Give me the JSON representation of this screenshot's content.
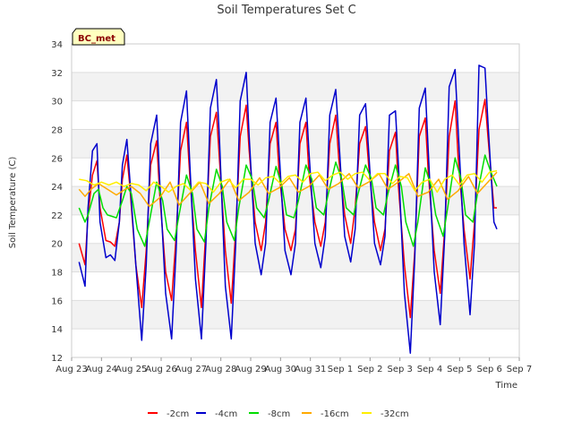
{
  "chart_data": {
    "type": "line",
    "title": "Soil Temperatures Set C",
    "xlabel": "Time",
    "ylabel": "Soil Temperature (C)",
    "badge": "BC_met",
    "ylim": [
      12,
      34
    ],
    "yticks": [
      12,
      14,
      16,
      18,
      20,
      22,
      24,
      26,
      28,
      30,
      32,
      34
    ],
    "xlim": [
      0,
      15
    ],
    "xticks": [
      {
        "pos": 0,
        "label": "Aug 23"
      },
      {
        "pos": 1,
        "label": "Aug 24"
      },
      {
        "pos": 2,
        "label": "Aug 25"
      },
      {
        "pos": 3,
        "label": "Aug 26"
      },
      {
        "pos": 4,
        "label": "Aug 27"
      },
      {
        "pos": 5,
        "label": "Aug 28"
      },
      {
        "pos": 6,
        "label": "Aug 29"
      },
      {
        "pos": 7,
        "label": "Aug 30"
      },
      {
        "pos": 8,
        "label": "Aug 31"
      },
      {
        "pos": 9,
        "label": "Sep 1"
      },
      {
        "pos": 10,
        "label": "Sep 2"
      },
      {
        "pos": 11,
        "label": "Sep 3"
      },
      {
        "pos": 12,
        "label": "Sep 4"
      },
      {
        "pos": 13,
        "label": "Sep 5"
      },
      {
        "pos": 14,
        "label": "Sep 6"
      },
      {
        "pos": 15,
        "label": "Sep 7"
      }
    ],
    "grid": true,
    "legend_position": "bottom",
    "series": [
      {
        "name": "-2cm",
        "color": "#ff0000",
        "x": [
          0.25,
          0.45,
          0.55,
          0.7,
          0.85,
          0.95,
          1.15,
          1.3,
          1.45,
          1.6,
          1.7,
          1.85,
          1.95,
          2.15,
          2.35,
          2.5,
          2.65,
          2.85,
          2.95,
          3.15,
          3.35,
          3.5,
          3.65,
          3.85,
          3.95,
          4.15,
          4.35,
          4.5,
          4.65,
          4.85,
          4.95,
          5.15,
          5.35,
          5.5,
          5.65,
          5.85,
          5.95,
          6.15,
          6.35,
          6.5,
          6.65,
          6.85,
          6.95,
          7.15,
          7.35,
          7.5,
          7.65,
          7.85,
          7.95,
          8.15,
          8.35,
          8.5,
          8.65,
          8.85,
          8.95,
          9.15,
          9.35,
          9.5,
          9.65,
          9.85,
          9.95,
          10.15,
          10.35,
          10.5,
          10.65,
          10.85,
          10.95,
          11.15,
          11.35,
          11.5,
          11.65,
          11.85,
          11.95,
          12.15,
          12.35,
          12.5,
          12.65,
          12.85,
          12.95,
          13.15,
          13.35,
          13.5,
          13.65,
          13.85,
          13.95,
          14.15,
          14.25
        ],
        "y": [
          20.0,
          18.5,
          22.0,
          24.8,
          25.8,
          22.5,
          20.2,
          20.1,
          19.8,
          21.5,
          24.5,
          26.2,
          24.0,
          18.5,
          15.5,
          19.5,
          25.5,
          27.2,
          23.5,
          18.0,
          16.0,
          20.5,
          26.5,
          28.5,
          25.0,
          19.5,
          15.5,
          21.0,
          27.5,
          29.2,
          26.0,
          19.5,
          15.8,
          21.0,
          27.5,
          29.7,
          26.5,
          21.5,
          19.5,
          21.5,
          27.0,
          28.5,
          25.0,
          21.0,
          19.5,
          21.0,
          27.0,
          28.5,
          25.0,
          21.5,
          19.8,
          21.5,
          27.0,
          29.0,
          26.0,
          22.0,
          20.0,
          22.5,
          27.0,
          28.2,
          25.5,
          21.5,
          19.5,
          21.0,
          26.5,
          27.8,
          24.0,
          18.5,
          14.8,
          19.5,
          27.5,
          28.8,
          25.0,
          19.5,
          16.5,
          21.0,
          27.5,
          30.0,
          26.0,
          21.0,
          17.5,
          21.5,
          28.0,
          30.1,
          27.5,
          22.5,
          22.5
        ]
      },
      {
        "name": "-4cm",
        "color": "#0000cc",
        "x": [
          0.25,
          0.45,
          0.55,
          0.7,
          0.85,
          0.95,
          1.15,
          1.3,
          1.45,
          1.6,
          1.7,
          1.85,
          1.95,
          2.15,
          2.35,
          2.5,
          2.65,
          2.85,
          2.95,
          3.15,
          3.35,
          3.5,
          3.65,
          3.85,
          3.95,
          4.15,
          4.35,
          4.5,
          4.65,
          4.85,
          4.95,
          5.15,
          5.35,
          5.5,
          5.65,
          5.85,
          5.95,
          6.15,
          6.35,
          6.5,
          6.65,
          6.85,
          6.95,
          7.15,
          7.35,
          7.5,
          7.65,
          7.85,
          7.95,
          8.15,
          8.35,
          8.5,
          8.65,
          8.85,
          8.95,
          9.15,
          9.35,
          9.5,
          9.65,
          9.85,
          9.95,
          10.15,
          10.35,
          10.5,
          10.65,
          10.85,
          10.95,
          11.15,
          11.35,
          11.5,
          11.65,
          11.85,
          11.95,
          12.15,
          12.35,
          12.5,
          12.65,
          12.85,
          12.95,
          13.15,
          13.35,
          13.5,
          13.65,
          13.85,
          13.95,
          14.15,
          14.25
        ],
        "y": [
          18.7,
          17.0,
          22.5,
          26.5,
          27.0,
          21.5,
          19.0,
          19.2,
          18.8,
          21.5,
          25.5,
          27.3,
          24.5,
          18.5,
          13.2,
          18.5,
          27.0,
          29.0,
          24.5,
          16.5,
          13.3,
          19.5,
          28.5,
          30.7,
          26.0,
          17.5,
          13.3,
          20.0,
          29.5,
          31.5,
          27.5,
          17.0,
          13.3,
          20.0,
          30.0,
          32.0,
          27.5,
          20.0,
          17.8,
          20.0,
          28.5,
          30.2,
          26.5,
          19.5,
          17.8,
          20.0,
          28.5,
          30.2,
          26.5,
          20.0,
          18.3,
          20.5,
          29.0,
          30.8,
          27.5,
          20.5,
          18.7,
          21.0,
          29.0,
          29.8,
          26.5,
          20.0,
          18.5,
          20.5,
          29.0,
          29.3,
          25.5,
          16.5,
          12.3,
          19.0,
          29.5,
          30.9,
          26.5,
          18.0,
          14.3,
          20.5,
          31.0,
          32.2,
          28.0,
          20.0,
          15.0,
          20.0,
          32.5,
          32.3,
          28.5,
          21.5,
          21.0
        ]
      },
      {
        "name": "-8cm",
        "color": "#00dd00",
        "x": [
          0.25,
          0.45,
          0.55,
          0.75,
          0.9,
          1.05,
          1.2,
          1.5,
          1.7,
          1.85,
          2.0,
          2.2,
          2.45,
          2.6,
          2.85,
          3.05,
          3.2,
          3.45,
          3.6,
          3.85,
          4.05,
          4.2,
          4.45,
          4.6,
          4.85,
          5.05,
          5.2,
          5.45,
          5.6,
          5.85,
          6.05,
          6.2,
          6.45,
          6.6,
          6.85,
          7.05,
          7.2,
          7.45,
          7.6,
          7.85,
          8.05,
          8.2,
          8.45,
          8.6,
          8.85,
          9.05,
          9.2,
          9.45,
          9.6,
          9.85,
          10.05,
          10.2,
          10.45,
          10.6,
          10.85,
          11.05,
          11.2,
          11.45,
          11.6,
          11.85,
          12.05,
          12.2,
          12.45,
          12.6,
          12.85,
          13.05,
          13.2,
          13.45,
          13.6,
          13.85,
          14.05,
          14.25
        ],
        "y": [
          22.5,
          21.5,
          22.0,
          23.5,
          23.8,
          22.5,
          22.0,
          21.8,
          23.0,
          24.0,
          23.5,
          21.0,
          19.8,
          21.5,
          24.3,
          23.0,
          21.0,
          20.2,
          22.0,
          24.8,
          23.5,
          21.0,
          20.1,
          22.5,
          25.2,
          24.0,
          21.5,
          20.2,
          22.5,
          25.5,
          24.5,
          22.5,
          21.8,
          23.0,
          25.4,
          24.0,
          22.0,
          21.8,
          23.0,
          25.5,
          24.5,
          22.5,
          22.0,
          23.5,
          25.7,
          24.5,
          22.5,
          22.0,
          23.5,
          25.5,
          24.5,
          22.5,
          22.0,
          23.5,
          25.5,
          24.0,
          21.5,
          19.8,
          21.5,
          25.3,
          24.0,
          22.0,
          20.5,
          22.5,
          26.0,
          24.5,
          22.0,
          21.5,
          23.5,
          26.2,
          25.0,
          24.0
        ]
      },
      {
        "name": "-16cm",
        "color": "#ffaa00",
        "x": [
          0.25,
          0.45,
          0.65,
          0.9,
          1.2,
          1.5,
          1.8,
          2.0,
          2.3,
          2.6,
          2.95,
          3.3,
          3.6,
          3.95,
          4.3,
          4.6,
          4.95,
          5.3,
          5.6,
          5.95,
          6.3,
          6.6,
          6.95,
          7.3,
          7.6,
          7.95,
          8.3,
          8.6,
          8.95,
          9.3,
          9.6,
          9.95,
          10.3,
          10.6,
          10.95,
          11.3,
          11.6,
          11.95,
          12.3,
          12.6,
          12.95,
          13.3,
          13.6,
          13.95,
          14.25
        ],
        "y": [
          23.8,
          23.3,
          23.8,
          24.2,
          23.8,
          23.4,
          23.8,
          24.0,
          23.5,
          22.6,
          23.2,
          24.3,
          22.7,
          23.5,
          24.3,
          22.8,
          23.5,
          24.5,
          23.0,
          23.6,
          24.6,
          23.5,
          23.9,
          24.6,
          23.6,
          24.0,
          24.8,
          23.8,
          24.2,
          24.9,
          23.9,
          24.3,
          24.9,
          23.8,
          24.3,
          24.9,
          23.3,
          23.6,
          24.5,
          23.1,
          23.7,
          24.7,
          23.5,
          24.3,
          25.0
        ]
      },
      {
        "name": "-32cm",
        "color": "#ffee00",
        "x": [
          0.25,
          0.5,
          0.75,
          1.0,
          1.25,
          1.5,
          1.75,
          2.0,
          2.25,
          2.5,
          2.75,
          3.0,
          3.25,
          3.5,
          3.75,
          4.0,
          4.25,
          4.5,
          4.75,
          5.0,
          5.25,
          5.5,
          5.75,
          6.0,
          6.25,
          6.5,
          6.75,
          7.0,
          7.25,
          7.5,
          7.75,
          8.0,
          8.25,
          8.5,
          8.75,
          9.0,
          9.25,
          9.5,
          9.75,
          10.0,
          10.25,
          10.5,
          10.75,
          11.0,
          11.25,
          11.5,
          11.75,
          12.0,
          12.25,
          12.5,
          12.75,
          13.0,
          13.25,
          13.5,
          13.75,
          14.0,
          14.25
        ],
        "y": [
          24.5,
          24.4,
          24.1,
          24.3,
          24.1,
          24.3,
          24.0,
          24.2,
          24.1,
          23.7,
          24.3,
          24.0,
          23.6,
          24.0,
          24.2,
          23.7,
          24.3,
          24.2,
          23.6,
          24.3,
          24.5,
          23.9,
          24.5,
          24.5,
          24.1,
          24.6,
          24.7,
          24.2,
          24.7,
          24.8,
          24.3,
          24.9,
          25.0,
          24.4,
          24.8,
          25.0,
          24.5,
          24.9,
          25.0,
          24.4,
          24.9,
          24.9,
          24.2,
          24.7,
          24.6,
          23.7,
          24.3,
          24.5,
          23.6,
          24.5,
          24.8,
          24.1,
          24.8,
          24.9,
          24.3,
          25.0,
          25.1
        ]
      }
    ]
  }
}
